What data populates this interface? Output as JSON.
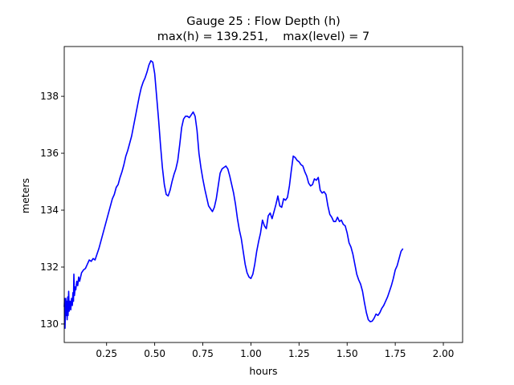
{
  "chart_data": {
    "type": "line",
    "title": "Gauge 25 : Flow Depth (h)",
    "subtitle": "max(h) = 139.251,    max(level) = 7",
    "xlabel": "hours",
    "ylabel": "meters",
    "xlim": [
      0.03,
      2.1
    ],
    "ylim": [
      129.35,
      139.75
    ],
    "xticks": [
      0.25,
      0.5,
      0.75,
      1.0,
      1.25,
      1.5,
      1.75,
      2.0
    ],
    "xtick_labels": [
      "0.25",
      "0.50",
      "0.75",
      "1.00",
      "1.25",
      "1.50",
      "1.75",
      "2.00"
    ],
    "yticks": [
      130,
      132,
      134,
      136,
      138
    ],
    "ytick_labels": [
      "130",
      "132",
      "134",
      "136",
      "138"
    ],
    "grid": false,
    "line_color": "#0000ff",
    "series": [
      {
        "name": "",
        "points": [
          [
            0.03,
            130.6
          ],
          [
            0.032,
            130.9
          ],
          [
            0.034,
            129.85
          ],
          [
            0.036,
            130.5
          ],
          [
            0.038,
            130.9
          ],
          [
            0.04,
            130.3
          ],
          [
            0.042,
            130.8
          ],
          [
            0.045,
            130.15
          ],
          [
            0.048,
            130.95
          ],
          [
            0.05,
            130.3
          ],
          [
            0.053,
            131.15
          ],
          [
            0.056,
            130.45
          ],
          [
            0.06,
            130.8
          ],
          [
            0.064,
            130.5
          ],
          [
            0.068,
            130.9
          ],
          [
            0.072,
            130.65
          ],
          [
            0.075,
            131.1
          ],
          [
            0.078,
            130.8
          ],
          [
            0.08,
            131.75
          ],
          [
            0.083,
            131.0
          ],
          [
            0.087,
            131.3
          ],
          [
            0.09,
            131.2
          ],
          [
            0.095,
            131.5
          ],
          [
            0.1,
            131.35
          ],
          [
            0.105,
            131.65
          ],
          [
            0.11,
            131.5
          ],
          [
            0.12,
            131.8
          ],
          [
            0.13,
            131.9
          ],
          [
            0.14,
            131.95
          ],
          [
            0.15,
            132.1
          ],
          [
            0.16,
            132.25
          ],
          [
            0.17,
            132.2
          ],
          [
            0.18,
            132.3
          ],
          [
            0.19,
            132.25
          ],
          [
            0.2,
            132.45
          ],
          [
            0.21,
            132.65
          ],
          [
            0.22,
            132.9
          ],
          [
            0.23,
            133.15
          ],
          [
            0.24,
            133.4
          ],
          [
            0.25,
            133.65
          ],
          [
            0.26,
            133.9
          ],
          [
            0.27,
            134.15
          ],
          [
            0.28,
            134.4
          ],
          [
            0.29,
            134.55
          ],
          [
            0.3,
            134.8
          ],
          [
            0.31,
            134.9
          ],
          [
            0.32,
            135.15
          ],
          [
            0.33,
            135.35
          ],
          [
            0.34,
            135.6
          ],
          [
            0.35,
            135.9
          ],
          [
            0.36,
            136.1
          ],
          [
            0.37,
            136.35
          ],
          [
            0.38,
            136.6
          ],
          [
            0.39,
            136.95
          ],
          [
            0.4,
            137.3
          ],
          [
            0.41,
            137.65
          ],
          [
            0.42,
            138.0
          ],
          [
            0.43,
            138.3
          ],
          [
            0.44,
            138.5
          ],
          [
            0.45,
            138.65
          ],
          [
            0.46,
            138.85
          ],
          [
            0.47,
            139.1
          ],
          [
            0.48,
            139.25
          ],
          [
            0.49,
            139.2
          ],
          [
            0.5,
            138.8
          ],
          [
            0.51,
            138.0
          ],
          [
            0.52,
            137.2
          ],
          [
            0.53,
            136.3
          ],
          [
            0.54,
            135.5
          ],
          [
            0.55,
            134.9
          ],
          [
            0.56,
            134.55
          ],
          [
            0.57,
            134.5
          ],
          [
            0.58,
            134.7
          ],
          [
            0.59,
            135.0
          ],
          [
            0.6,
            135.25
          ],
          [
            0.61,
            135.45
          ],
          [
            0.62,
            135.75
          ],
          [
            0.63,
            136.3
          ],
          [
            0.64,
            136.9
          ],
          [
            0.65,
            137.2
          ],
          [
            0.66,
            137.3
          ],
          [
            0.67,
            137.3
          ],
          [
            0.68,
            137.25
          ],
          [
            0.69,
            137.35
          ],
          [
            0.7,
            137.45
          ],
          [
            0.71,
            137.3
          ],
          [
            0.72,
            136.8
          ],
          [
            0.73,
            136.0
          ],
          [
            0.74,
            135.5
          ],
          [
            0.75,
            135.1
          ],
          [
            0.76,
            134.75
          ],
          [
            0.77,
            134.45
          ],
          [
            0.78,
            134.15
          ],
          [
            0.79,
            134.05
          ],
          [
            0.8,
            133.95
          ],
          [
            0.81,
            134.1
          ],
          [
            0.82,
            134.4
          ],
          [
            0.83,
            134.85
          ],
          [
            0.84,
            135.3
          ],
          [
            0.85,
            135.45
          ],
          [
            0.86,
            135.5
          ],
          [
            0.87,
            135.55
          ],
          [
            0.88,
            135.45
          ],
          [
            0.89,
            135.2
          ],
          [
            0.9,
            134.9
          ],
          [
            0.91,
            134.6
          ],
          [
            0.92,
            134.2
          ],
          [
            0.93,
            133.7
          ],
          [
            0.94,
            133.3
          ],
          [
            0.95,
            133.0
          ],
          [
            0.96,
            132.55
          ],
          [
            0.97,
            132.1
          ],
          [
            0.98,
            131.8
          ],
          [
            0.99,
            131.65
          ],
          [
            1.0,
            131.6
          ],
          [
            1.01,
            131.75
          ],
          [
            1.02,
            132.1
          ],
          [
            1.03,
            132.55
          ],
          [
            1.04,
            132.9
          ],
          [
            1.05,
            133.2
          ],
          [
            1.06,
            133.65
          ],
          [
            1.07,
            133.45
          ],
          [
            1.08,
            133.35
          ],
          [
            1.09,
            133.8
          ],
          [
            1.1,
            133.9
          ],
          [
            1.11,
            133.7
          ],
          [
            1.12,
            133.95
          ],
          [
            1.13,
            134.2
          ],
          [
            1.14,
            134.5
          ],
          [
            1.15,
            134.15
          ],
          [
            1.16,
            134.1
          ],
          [
            1.17,
            134.4
          ],
          [
            1.18,
            134.35
          ],
          [
            1.19,
            134.45
          ],
          [
            1.2,
            134.85
          ],
          [
            1.21,
            135.4
          ],
          [
            1.22,
            135.9
          ],
          [
            1.23,
            135.85
          ],
          [
            1.24,
            135.75
          ],
          [
            1.25,
            135.7
          ],
          [
            1.26,
            135.6
          ],
          [
            1.27,
            135.55
          ],
          [
            1.28,
            135.35
          ],
          [
            1.29,
            135.2
          ],
          [
            1.3,
            134.95
          ],
          [
            1.31,
            134.85
          ],
          [
            1.32,
            134.9
          ],
          [
            1.33,
            135.1
          ],
          [
            1.34,
            135.05
          ],
          [
            1.35,
            135.15
          ],
          [
            1.36,
            134.7
          ],
          [
            1.37,
            134.6
          ],
          [
            1.38,
            134.65
          ],
          [
            1.39,
            134.55
          ],
          [
            1.4,
            134.15
          ],
          [
            1.41,
            133.85
          ],
          [
            1.42,
            133.75
          ],
          [
            1.43,
            133.6
          ],
          [
            1.44,
            133.6
          ],
          [
            1.45,
            133.75
          ],
          [
            1.46,
            133.6
          ],
          [
            1.47,
            133.65
          ],
          [
            1.48,
            133.5
          ],
          [
            1.49,
            133.45
          ],
          [
            1.5,
            133.2
          ],
          [
            1.51,
            132.85
          ],
          [
            1.52,
            132.7
          ],
          [
            1.53,
            132.45
          ],
          [
            1.54,
            132.1
          ],
          [
            1.55,
            131.75
          ],
          [
            1.56,
            131.55
          ],
          [
            1.57,
            131.4
          ],
          [
            1.58,
            131.15
          ],
          [
            1.59,
            130.75
          ],
          [
            1.6,
            130.4
          ],
          [
            1.61,
            130.15
          ],
          [
            1.62,
            130.08
          ],
          [
            1.63,
            130.1
          ],
          [
            1.64,
            130.2
          ],
          [
            1.65,
            130.35
          ],
          [
            1.66,
            130.3
          ],
          [
            1.67,
            130.4
          ],
          [
            1.68,
            130.55
          ],
          [
            1.69,
            130.65
          ],
          [
            1.7,
            130.8
          ],
          [
            1.71,
            130.95
          ],
          [
            1.72,
            131.15
          ],
          [
            1.73,
            131.35
          ],
          [
            1.74,
            131.6
          ],
          [
            1.75,
            131.9
          ],
          [
            1.76,
            132.05
          ],
          [
            1.77,
            132.3
          ],
          [
            1.78,
            132.55
          ],
          [
            1.79,
            132.65
          ]
        ]
      }
    ]
  }
}
